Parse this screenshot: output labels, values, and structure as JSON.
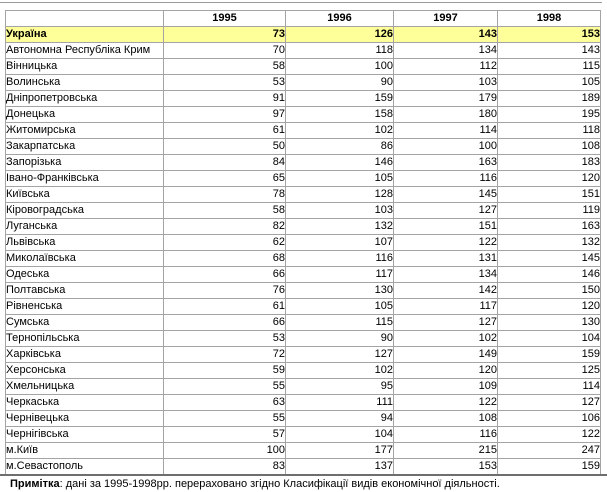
{
  "table": {
    "corner": "",
    "years": [
      "1995",
      "1996",
      "1997",
      "1998"
    ],
    "rows": [
      {
        "name": "Україна",
        "values": [
          "73",
          "126",
          "143",
          "153"
        ],
        "highlight": true
      },
      {
        "name": "Автономна Республіка  Крим",
        "values": [
          "70",
          "118",
          "134",
          "143"
        ]
      },
      {
        "name": "Вінницька",
        "values": [
          "58",
          "100",
          "112",
          "115"
        ]
      },
      {
        "name": "Волинська",
        "values": [
          "53",
          "90",
          "103",
          "105"
        ]
      },
      {
        "name": "Дніпропетровська",
        "values": [
          "91",
          "159",
          "179",
          "189"
        ]
      },
      {
        "name": "Донецька",
        "values": [
          "97",
          "158",
          "180",
          "195"
        ]
      },
      {
        "name": "Житомирська",
        "values": [
          "61",
          "102",
          "114",
          "118"
        ]
      },
      {
        "name": "Закарпатська",
        "values": [
          "50",
          "86",
          "100",
          "108"
        ]
      },
      {
        "name": "Запорізька",
        "values": [
          "84",
          "146",
          "163",
          "183"
        ]
      },
      {
        "name": "Івано-Франківська",
        "values": [
          "65",
          "105",
          "116",
          "120"
        ]
      },
      {
        "name": "Київська",
        "values": [
          "78",
          "128",
          "145",
          "151"
        ]
      },
      {
        "name": "Кіровоградська",
        "values": [
          "58",
          "103",
          "127",
          "119"
        ]
      },
      {
        "name": "Луганська",
        "values": [
          "82",
          "132",
          "151",
          "163"
        ]
      },
      {
        "name": "Львівська",
        "values": [
          "62",
          "107",
          "122",
          "132"
        ]
      },
      {
        "name": "Миколаївська",
        "values": [
          "68",
          "116",
          "131",
          "145"
        ]
      },
      {
        "name": "Одеська",
        "values": [
          "66",
          "117",
          "134",
          "146"
        ]
      },
      {
        "name": "Полтавська",
        "values": [
          "76",
          "130",
          "142",
          "150"
        ]
      },
      {
        "name": "Рівненська",
        "values": [
          "61",
          "105",
          "117",
          "120"
        ]
      },
      {
        "name": "Сумська",
        "values": [
          "66",
          "115",
          "127",
          "130"
        ]
      },
      {
        "name": "Тернопільська",
        "values": [
          "53",
          "90",
          "102",
          "104"
        ]
      },
      {
        "name": "Харківська",
        "values": [
          "72",
          "127",
          "149",
          "159"
        ]
      },
      {
        "name": "Херсонська",
        "values": [
          "59",
          "102",
          "120",
          "125"
        ]
      },
      {
        "name": "Хмельницька",
        "values": [
          "55",
          "95",
          "109",
          "114"
        ]
      },
      {
        "name": "Черкаська",
        "values": [
          "63",
          "111",
          "122",
          "127"
        ]
      },
      {
        "name": "Чернівецька",
        "values": [
          "55",
          "94",
          "108",
          "106"
        ]
      },
      {
        "name": "Чернігівська",
        "values": [
          "57",
          "104",
          "116",
          "122"
        ]
      },
      {
        "name": "м.Київ",
        "values": [
          "100",
          "177",
          "215",
          "247"
        ]
      },
      {
        "name": "м.Севастополь",
        "values": [
          "83",
          "137",
          "153",
          "159"
        ]
      }
    ]
  },
  "note": {
    "label": "Примітка",
    "text": ": дані за 1995-1998рр. перераховано згідно Класифікації видів економічної діяльності."
  },
  "colors": {
    "highlight_row_bg": "#FFFF99",
    "table_border": "#a4a4a4",
    "bottom_rule": "#6e6e6e"
  }
}
